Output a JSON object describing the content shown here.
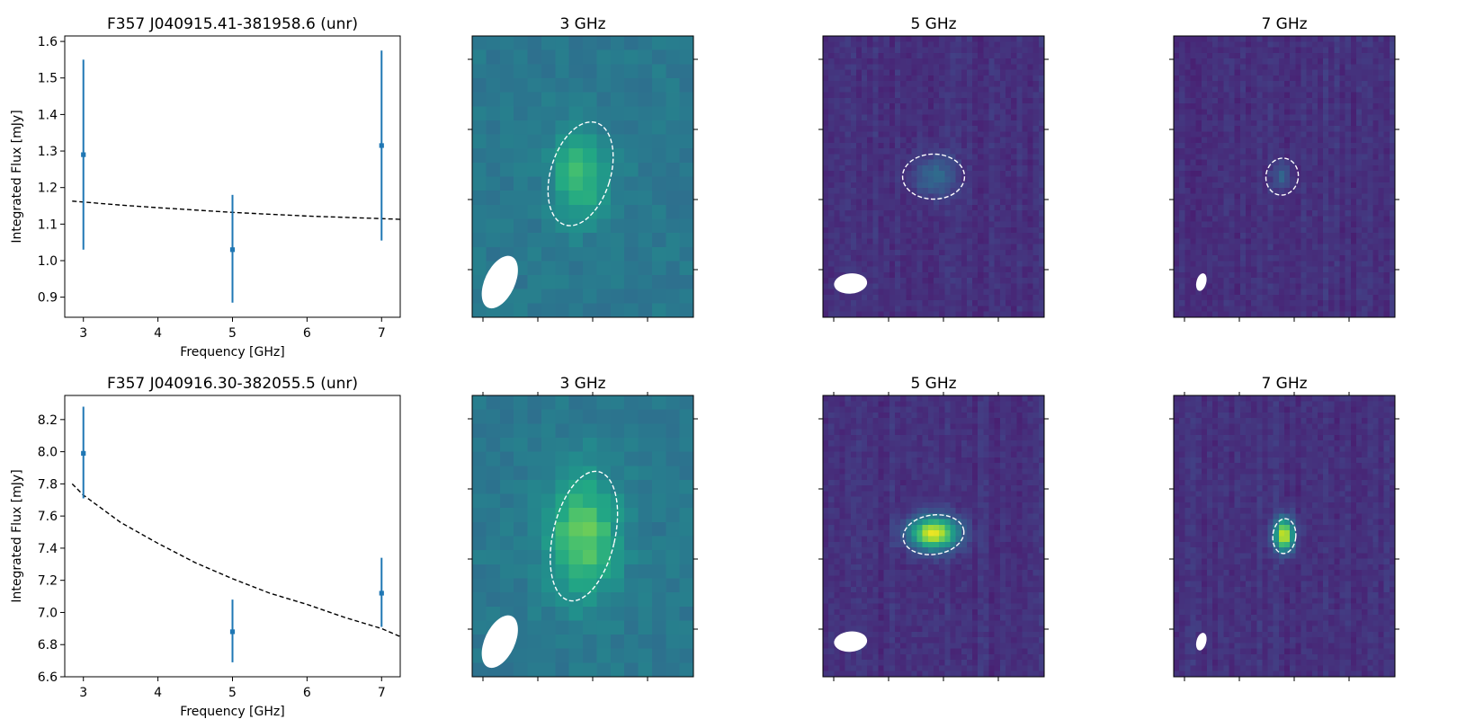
{
  "figure": {
    "background": "#ffffff"
  },
  "chart_data": [
    {
      "type": "scatter",
      "title": "F357 J040915.41-381958.6 (unr)",
      "xlabel": "Frequency [GHz]",
      "ylabel": "Integrated Flux [mJy]",
      "xlim": [
        2.75,
        7.25
      ],
      "ylim": [
        0.845,
        1.615
      ],
      "xticks": [
        "3",
        "4",
        "5",
        "6",
        "7"
      ],
      "yticks": [
        "0.9",
        "1.0",
        "1.1",
        "1.2",
        "1.3",
        "1.4",
        "1.5",
        "1.6"
      ],
      "points": [
        {
          "x": 3,
          "y": 1.29,
          "err_low": 1.03,
          "err_high": 1.55
        },
        {
          "x": 5,
          "y": 1.03,
          "err_low": 0.885,
          "err_high": 1.18
        },
        {
          "x": 7,
          "y": 1.315,
          "err_low": 1.055,
          "err_high": 1.575
        }
      ],
      "fit": {
        "style": "dashed",
        "x": [
          2.85,
          3.5,
          4.0,
          5.0,
          6.0,
          7.0,
          7.25
        ],
        "y": [
          1.163,
          1.152,
          1.145,
          1.132,
          1.122,
          1.115,
          1.113
        ]
      },
      "point_color": "#1f77b4",
      "fit_color": "#000000"
    },
    {
      "type": "heatmap",
      "title": "3 GHz",
      "colormap": "viridis",
      "grid": [
        16,
        20
      ],
      "source": {
        "cx": 0.49,
        "cy": 0.49,
        "sx": 0.09,
        "sy": 0.11,
        "peak": 0.28
      },
      "background_level": 0.4,
      "noise_level": 0.035,
      "stripe_level": 0.0,
      "seed": 11,
      "ellipse": {
        "cx": 0.49,
        "cy": 0.49,
        "rx": 0.135,
        "ry": 0.19,
        "angle": 17
      },
      "beam": {
        "cx": 0.125,
        "cy": 0.875,
        "rx": 0.068,
        "ry": 0.1,
        "angle": 25
      },
      "ellipse_color": "#ffffff"
    },
    {
      "type": "heatmap",
      "title": "5 GHz",
      "colormap": "viridis",
      "grid": [
        40,
        50
      ],
      "source": {
        "cx": 0.5,
        "cy": 0.5,
        "sx": 0.06,
        "sy": 0.05,
        "peak": 0.22
      },
      "background_level": 0.14,
      "noise_level": 0.03,
      "stripe_level": 0.025,
      "seed": 23,
      "ellipse": {
        "cx": 0.5,
        "cy": 0.5,
        "rx": 0.14,
        "ry": 0.08,
        "angle": 0
      },
      "beam": {
        "cx": 0.125,
        "cy": 0.88,
        "rx": 0.075,
        "ry": 0.036,
        "angle": -5
      },
      "ellipse_color": "#ffffff"
    },
    {
      "type": "heatmap",
      "title": "7 GHz",
      "colormap": "viridis",
      "grid": [
        40,
        50
      ],
      "source": {
        "cx": 0.49,
        "cy": 0.5,
        "sx": 0.025,
        "sy": 0.03,
        "peak": 0.2
      },
      "background_level": 0.14,
      "noise_level": 0.03,
      "stripe_level": 0.025,
      "seed": 37,
      "ellipse": {
        "cx": 0.49,
        "cy": 0.5,
        "rx": 0.073,
        "ry": 0.066,
        "angle": 10
      },
      "beam": {
        "cx": 0.125,
        "cy": 0.875,
        "rx": 0.022,
        "ry": 0.032,
        "angle": 15
      },
      "ellipse_color": "#ffffff"
    },
    {
      "type": "scatter",
      "title": "F357 J040916.30-382055.5 (unr)",
      "xlabel": "Frequency [GHz]",
      "ylabel": "Integrated Flux [mJy]",
      "xlim": [
        2.75,
        7.25
      ],
      "ylim": [
        6.6,
        8.35
      ],
      "xticks": [
        "3",
        "4",
        "5",
        "6",
        "7"
      ],
      "yticks": [
        "6.6",
        "6.8",
        "7.0",
        "7.2",
        "7.4",
        "7.6",
        "7.8",
        "8.0",
        "8.2"
      ],
      "points": [
        {
          "x": 3,
          "y": 7.99,
          "err_low": 7.71,
          "err_high": 8.28
        },
        {
          "x": 5,
          "y": 6.88,
          "err_low": 6.69,
          "err_high": 7.08
        },
        {
          "x": 7,
          "y": 7.12,
          "err_low": 6.91,
          "err_high": 7.34
        }
      ],
      "fit": {
        "style": "dashed",
        "x": [
          2.85,
          3.0,
          3.5,
          4.0,
          4.5,
          5.0,
          5.5,
          6.0,
          6.5,
          7.0,
          7.25
        ],
        "y": [
          7.8,
          7.73,
          7.56,
          7.43,
          7.31,
          7.21,
          7.12,
          7.05,
          6.97,
          6.9,
          6.85
        ]
      },
      "point_color": "#1f77b4",
      "fit_color": "#000000"
    },
    {
      "type": "heatmap",
      "title": "3 GHz",
      "colormap": "viridis",
      "grid": [
        16,
        20
      ],
      "source": {
        "cx": 0.5,
        "cy": 0.5,
        "sx": 0.11,
        "sy": 0.15,
        "peak": 0.36
      },
      "background_level": 0.4,
      "noise_level": 0.035,
      "stripe_level": 0.0,
      "seed": 53,
      "ellipse": {
        "cx": 0.505,
        "cy": 0.5,
        "rx": 0.14,
        "ry": 0.235,
        "angle": 13
      },
      "beam": {
        "cx": 0.125,
        "cy": 0.875,
        "rx": 0.068,
        "ry": 0.1,
        "angle": 25
      },
      "ellipse_color": "#ffffff"
    },
    {
      "type": "heatmap",
      "title": "5 GHz",
      "colormap": "viridis",
      "grid": [
        40,
        50
      ],
      "source": {
        "cx": 0.5,
        "cy": 0.49,
        "sx": 0.075,
        "sy": 0.04,
        "peak": 0.82
      },
      "background_level": 0.14,
      "noise_level": 0.03,
      "stripe_level": 0.025,
      "seed": 71,
      "ellipse": {
        "cx": 0.5,
        "cy": 0.495,
        "rx": 0.138,
        "ry": 0.07,
        "angle": -8
      },
      "beam": {
        "cx": 0.125,
        "cy": 0.875,
        "rx": 0.075,
        "ry": 0.036,
        "angle": -5
      },
      "ellipse_color": "#ffffff"
    },
    {
      "type": "heatmap",
      "title": "7 GHz",
      "colormap": "viridis",
      "grid": [
        40,
        50
      ],
      "source": {
        "cx": 0.5,
        "cy": 0.495,
        "sx": 0.03,
        "sy": 0.04,
        "peak": 0.84
      },
      "background_level": 0.14,
      "noise_level": 0.03,
      "stripe_level": 0.025,
      "seed": 89,
      "ellipse": {
        "cx": 0.5,
        "cy": 0.5,
        "rx": 0.052,
        "ry": 0.062,
        "angle": 5
      },
      "beam": {
        "cx": 0.125,
        "cy": 0.875,
        "rx": 0.022,
        "ry": 0.032,
        "angle": 15
      },
      "ellipse_color": "#ffffff"
    }
  ]
}
